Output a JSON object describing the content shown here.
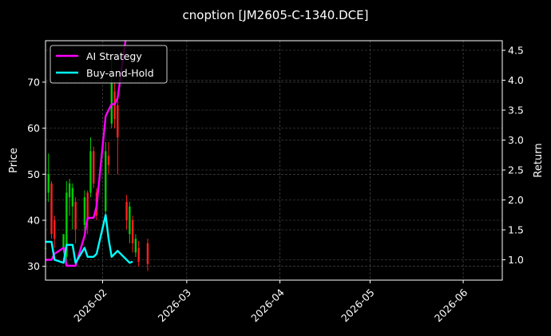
{
  "chart_data": {
    "type": "line",
    "title": "cnoption [JM2605-C-1340.DCE]",
    "ylabel_left": "Price",
    "ylabel_right": "Return",
    "ylim_left": [
      27,
      79
    ],
    "ylim_right": [
      0.66,
      4.66
    ],
    "xlim": [
      "2026-01-13",
      "2026-06-14"
    ],
    "x_ticks": [
      "2026-02",
      "2026-03",
      "2026-04",
      "2026-05",
      "2026-06"
    ],
    "x_tick_dates": [
      "2026-02-01",
      "2026-03-01",
      "2026-04-01",
      "2026-05-01",
      "2026-06-01"
    ],
    "y_ticks_left": [
      30,
      40,
      50,
      60,
      70
    ],
    "y_ticks_right": [
      1.0,
      1.5,
      2.0,
      2.5,
      3.0,
      3.5,
      4.0,
      4.5
    ],
    "grid": true,
    "legend_position": "top-left",
    "colors": {
      "up": "#00cc00",
      "down": "#ff2020",
      "ai": "#ff00ff",
      "bh": "#00ffff",
      "grid": "#555555",
      "axis": "#ffffff"
    },
    "series": [
      {
        "name": "AI Strategy",
        "axis": "right",
        "x": [
          "2026-01-13",
          "2026-01-15",
          "2026-01-16",
          "2026-01-19",
          "2026-01-20",
          "2026-01-21",
          "2026-01-22",
          "2026-01-23",
          "2026-01-26",
          "2026-01-27",
          "2026-01-28",
          "2026-01-29",
          "2026-01-30",
          "2026-02-02",
          "2026-02-03",
          "2026-02-04",
          "2026-02-05",
          "2026-02-06",
          "2026-02-09",
          "2026-02-10",
          "2026-02-11"
        ],
        "values": [
          1.0,
          1.0,
          1.1,
          1.2,
          0.9,
          0.9,
          0.9,
          0.9,
          1.4,
          1.7,
          1.7,
          1.7,
          1.9,
          3.4,
          3.5,
          3.6,
          3.6,
          3.7,
          4.8,
          4.9,
          5.0
        ]
      },
      {
        "name": "Buy-and-Hold",
        "axis": "right",
        "x": [
          "2026-01-13",
          "2026-01-15",
          "2026-01-16",
          "2026-01-19",
          "2026-01-20",
          "2026-01-21",
          "2026-01-22",
          "2026-01-23",
          "2026-01-26",
          "2026-01-27",
          "2026-01-28",
          "2026-01-29",
          "2026-01-30",
          "2026-02-02",
          "2026-02-03",
          "2026-02-04",
          "2026-02-05",
          "2026-02-06",
          "2026-02-09",
          "2026-02-10",
          "2026-02-11"
        ],
        "values": [
          1.3,
          1.3,
          1.0,
          0.95,
          1.25,
          1.25,
          1.25,
          0.95,
          1.2,
          1.05,
          1.05,
          1.05,
          1.1,
          1.75,
          1.35,
          1.05,
          1.1,
          1.15,
          1.0,
          0.95,
          0.97
        ]
      }
    ],
    "candles": [
      {
        "x": "2026-01-13",
        "o": 34,
        "c": 34,
        "h": 35,
        "l": 33
      },
      {
        "x": "2026-01-14",
        "o": 46,
        "c": 50,
        "h": 54.5,
        "l": 44
      },
      {
        "x": "2026-01-15",
        "o": 48,
        "c": 37,
        "h": 48.5,
        "l": 36
      },
      {
        "x": "2026-01-16",
        "o": 40,
        "c": 36,
        "h": 41,
        "l": 34
      },
      {
        "x": "2026-01-19",
        "o": 34,
        "c": 37,
        "h": 37,
        "l": 33
      },
      {
        "x": "2026-01-20",
        "o": 32,
        "c": 46,
        "h": 48.5,
        "l": 31
      },
      {
        "x": "2026-01-21",
        "o": 45,
        "c": 48,
        "h": 49,
        "l": 41
      },
      {
        "x": "2026-01-22",
        "o": 43,
        "c": 47,
        "h": 48,
        "l": 38
      },
      {
        "x": "2026-01-23",
        "o": 44,
        "c": 38,
        "h": 45,
        "l": 35
      },
      {
        "x": "2026-01-26",
        "o": 39,
        "c": 45,
        "h": 46.5,
        "l": 37
      },
      {
        "x": "2026-01-27",
        "o": 46,
        "c": 40,
        "h": 46.5,
        "l": 37
      },
      {
        "x": "2026-01-28",
        "o": 46,
        "c": 55,
        "h": 58,
        "l": 45
      },
      {
        "x": "2026-01-29",
        "o": 55,
        "c": 48,
        "h": 56,
        "l": 47
      },
      {
        "x": "2026-01-30",
        "o": 46,
        "c": 41,
        "h": 47,
        "l": 40
      },
      {
        "x": "2026-02-02",
        "o": 42,
        "c": 55,
        "h": 57,
        "l": 40
      },
      {
        "x": "2026-02-03",
        "o": 54,
        "c": 52,
        "h": 57,
        "l": 50
      },
      {
        "x": "2026-02-04",
        "o": 61,
        "c": 70,
        "h": 75,
        "l": 60
      },
      {
        "x": "2026-02-05",
        "o": 68,
        "c": 62,
        "h": 70,
        "l": 60
      },
      {
        "x": "2026-02-06",
        "o": 65,
        "c": 58,
        "h": 67,
        "l": 50
      },
      {
        "x": "2026-02-09",
        "o": 44,
        "c": 40,
        "h": 45.5,
        "l": 38
      },
      {
        "x": "2026-02-10",
        "o": 37,
        "c": 43,
        "h": 44,
        "l": 35
      },
      {
        "x": "2026-02-11",
        "o": 40,
        "c": 35,
        "h": 41,
        "l": 33
      },
      {
        "x": "2026-02-12",
        "o": 33,
        "c": 36,
        "h": 37,
        "l": 32
      },
      {
        "x": "2026-02-13",
        "o": 34,
        "c": 31,
        "h": 35.5,
        "l": 30
      },
      {
        "x": "2026-02-16",
        "o": 35,
        "c": 30.5,
        "h": 36,
        "l": 29
      }
    ]
  }
}
